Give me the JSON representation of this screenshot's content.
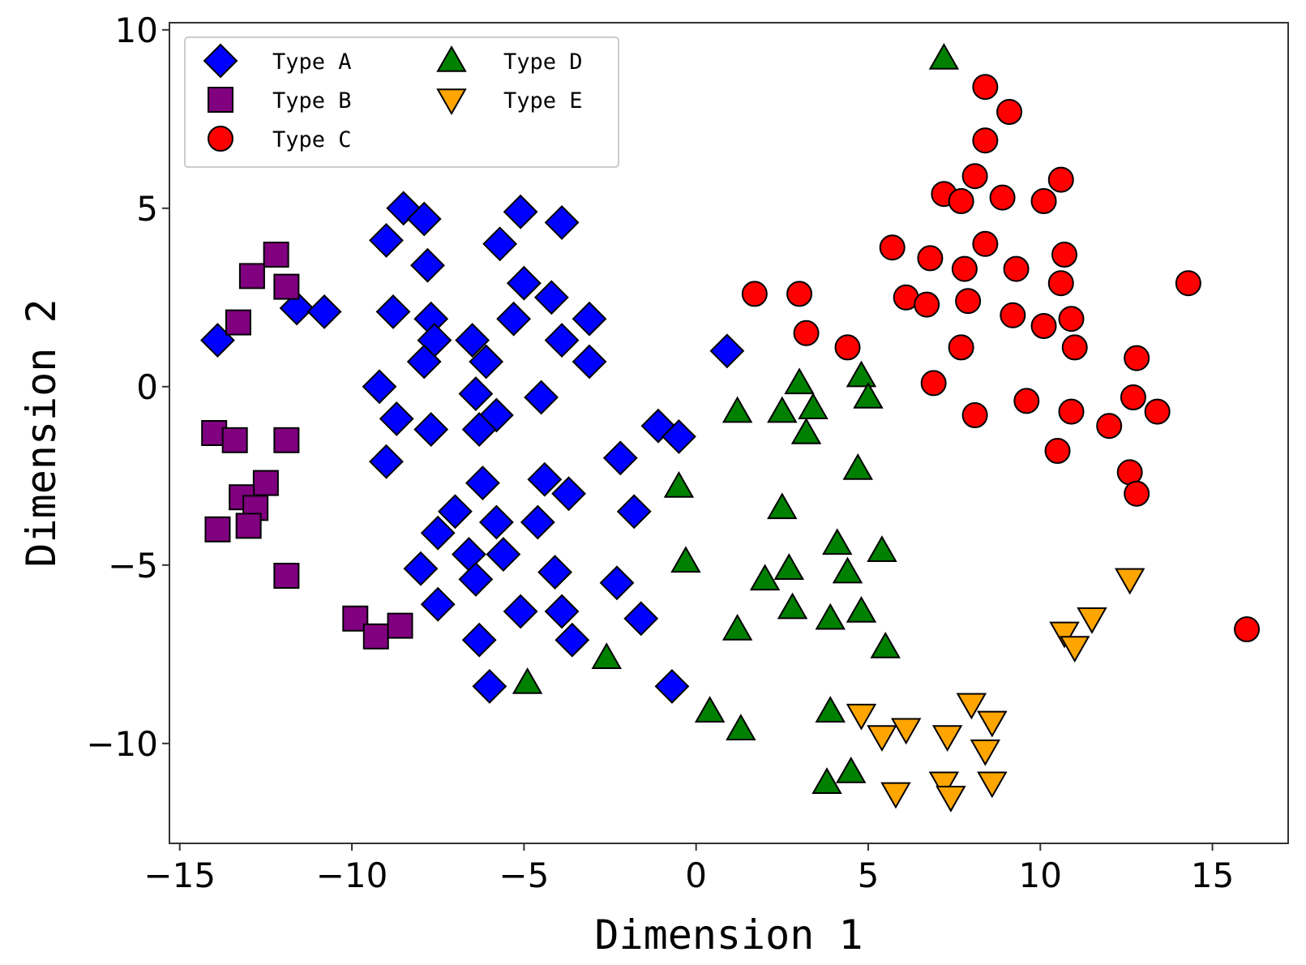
{
  "chart_data": {
    "type": "scatter",
    "title": "",
    "xlabel": "Dimension 1",
    "ylabel": "Dimension 2",
    "xlim": [
      -15.3,
      17.2
    ],
    "ylim": [
      -12.8,
      10.2
    ],
    "xticks": [
      -15,
      -10,
      -5,
      0,
      5,
      10,
      15
    ],
    "yticks": [
      -10,
      -5,
      0,
      5,
      10
    ],
    "xtick_labels": [
      "−15",
      "−10",
      "−5",
      "0",
      "5",
      "10",
      "15"
    ],
    "ytick_labels": [
      "−10",
      "−5",
      "0",
      "5",
      "10"
    ],
    "grid": false,
    "legend_position": "top-left",
    "series": [
      {
        "name": "Type A",
        "marker": "diamond",
        "color": "#0000ff",
        "points": [
          [
            -13.9,
            1.3
          ],
          [
            -11.6,
            2.2
          ],
          [
            -10.8,
            2.1
          ],
          [
            -8.5,
            5.0
          ],
          [
            -7.9,
            4.7
          ],
          [
            -9.0,
            4.1
          ],
          [
            -7.8,
            3.4
          ],
          [
            -8.8,
            2.1
          ],
          [
            -7.7,
            1.9
          ],
          [
            -7.6,
            1.3
          ],
          [
            -7.9,
            0.7
          ],
          [
            -9.2,
            0.0
          ],
          [
            -8.7,
            -0.9
          ],
          [
            -7.7,
            -1.2
          ],
          [
            -9.0,
            -2.1
          ],
          [
            -5.1,
            4.9
          ],
          [
            -3.9,
            4.6
          ],
          [
            -5.7,
            4.0
          ],
          [
            -5.0,
            2.9
          ],
          [
            -4.2,
            2.5
          ],
          [
            -5.3,
            1.9
          ],
          [
            -3.1,
            1.9
          ],
          [
            -3.9,
            1.3
          ],
          [
            -6.5,
            1.3
          ],
          [
            -6.1,
            0.7
          ],
          [
            -3.1,
            0.7
          ],
          [
            -6.4,
            -0.2
          ],
          [
            -4.5,
            -0.3
          ],
          [
            -5.8,
            -0.8
          ],
          [
            -6.3,
            -1.2
          ],
          [
            -1.1,
            -1.1
          ],
          [
            -0.5,
            -1.4
          ],
          [
            -2.2,
            -2.0
          ],
          [
            -6.2,
            -2.7
          ],
          [
            -4.4,
            -2.6
          ],
          [
            -3.7,
            -3.0
          ],
          [
            -7.0,
            -3.5
          ],
          [
            -7.5,
            -4.1
          ],
          [
            -5.8,
            -3.8
          ],
          [
            -4.6,
            -3.8
          ],
          [
            -1.8,
            -3.5
          ],
          [
            -6.6,
            -4.7
          ],
          [
            -5.6,
            -4.7
          ],
          [
            -8.0,
            -5.1
          ],
          [
            -6.4,
            -5.4
          ],
          [
            -4.1,
            -5.2
          ],
          [
            -2.3,
            -5.5
          ],
          [
            -7.5,
            -6.1
          ],
          [
            -5.1,
            -6.3
          ],
          [
            -3.9,
            -6.3
          ],
          [
            -1.6,
            -6.5
          ],
          [
            -6.3,
            -7.1
          ],
          [
            -3.6,
            -7.1
          ],
          [
            -6.0,
            -8.4
          ],
          [
            -0.7,
            -8.4
          ],
          [
            0.9,
            1.0
          ]
        ]
      },
      {
        "name": "Type B",
        "marker": "square",
        "color": "#800080",
        "points": [
          [
            -12.2,
            3.7
          ],
          [
            -12.9,
            3.1
          ],
          [
            -11.9,
            2.8
          ],
          [
            -13.3,
            1.8
          ],
          [
            -14.0,
            -1.3
          ],
          [
            -13.4,
            -1.5
          ],
          [
            -11.9,
            -1.5
          ],
          [
            -12.5,
            -2.7
          ],
          [
            -13.2,
            -3.1
          ],
          [
            -12.8,
            -3.4
          ],
          [
            -13.9,
            -4.0
          ],
          [
            -13.0,
            -3.9
          ],
          [
            -11.9,
            -5.3
          ],
          [
            -9.9,
            -6.5
          ],
          [
            -9.3,
            -7.0
          ],
          [
            -8.6,
            -6.7
          ]
        ]
      },
      {
        "name": "Type C",
        "marker": "circle",
        "color": "#ff0000",
        "points": [
          [
            8.4,
            8.4
          ],
          [
            9.1,
            7.7
          ],
          [
            8.4,
            6.9
          ],
          [
            8.1,
            5.9
          ],
          [
            7.2,
            5.4
          ],
          [
            7.7,
            5.2
          ],
          [
            8.9,
            5.3
          ],
          [
            10.1,
            5.2
          ],
          [
            10.6,
            5.8
          ],
          [
            5.7,
            3.9
          ],
          [
            6.8,
            3.6
          ],
          [
            7.8,
            3.3
          ],
          [
            8.4,
            4.0
          ],
          [
            9.3,
            3.3
          ],
          [
            10.7,
            3.7
          ],
          [
            10.6,
            2.9
          ],
          [
            14.3,
            2.9
          ],
          [
            1.7,
            2.6
          ],
          [
            3.0,
            2.6
          ],
          [
            6.1,
            2.5
          ],
          [
            6.7,
            2.3
          ],
          [
            7.9,
            2.4
          ],
          [
            9.2,
            2.0
          ],
          [
            10.1,
            1.7
          ],
          [
            10.9,
            1.9
          ],
          [
            3.2,
            1.5
          ],
          [
            4.4,
            1.1
          ],
          [
            7.7,
            1.1
          ],
          [
            11.0,
            1.1
          ],
          [
            6.9,
            0.1
          ],
          [
            12.8,
            0.8
          ],
          [
            12.7,
            -0.3
          ],
          [
            9.6,
            -0.4
          ],
          [
            13.4,
            -0.7
          ],
          [
            10.9,
            -0.7
          ],
          [
            8.1,
            -0.8
          ],
          [
            12.0,
            -1.1
          ],
          [
            10.5,
            -1.8
          ],
          [
            12.6,
            -2.4
          ],
          [
            12.8,
            -3.0
          ],
          [
            16.0,
            -6.8
          ]
        ]
      },
      {
        "name": "Type D",
        "marker": "triangle-up",
        "color": "#008000",
        "points": [
          [
            7.2,
            9.2
          ],
          [
            3.0,
            0.1
          ],
          [
            4.8,
            0.3
          ],
          [
            5.0,
            -0.3
          ],
          [
            1.2,
            -0.7
          ],
          [
            2.5,
            -0.7
          ],
          [
            3.4,
            -0.6
          ],
          [
            3.2,
            -1.3
          ],
          [
            4.7,
            -2.3
          ],
          [
            -0.5,
            -2.8
          ],
          [
            2.5,
            -3.4
          ],
          [
            4.1,
            -4.4
          ],
          [
            5.4,
            -4.6
          ],
          [
            -0.3,
            -4.9
          ],
          [
            2.7,
            -5.1
          ],
          [
            4.4,
            -5.2
          ],
          [
            2.0,
            -5.4
          ],
          [
            2.8,
            -6.2
          ],
          [
            3.9,
            -6.5
          ],
          [
            4.8,
            -6.3
          ],
          [
            1.2,
            -6.8
          ],
          [
            5.5,
            -7.3
          ],
          [
            -2.6,
            -7.6
          ],
          [
            -4.9,
            -8.3
          ],
          [
            0.4,
            -9.1
          ],
          [
            1.3,
            -9.6
          ],
          [
            3.9,
            -9.1
          ],
          [
            4.5,
            -10.8
          ],
          [
            3.8,
            -11.1
          ]
        ]
      },
      {
        "name": "Type E",
        "marker": "triangle-down",
        "color": "#ffa500",
        "points": [
          [
            12.6,
            -5.4
          ],
          [
            11.5,
            -6.5
          ],
          [
            10.7,
            -6.9
          ],
          [
            11.0,
            -7.3
          ],
          [
            4.8,
            -9.2
          ],
          [
            5.4,
            -9.8
          ],
          [
            6.1,
            -9.6
          ],
          [
            7.3,
            -9.8
          ],
          [
            8.0,
            -8.9
          ],
          [
            8.6,
            -9.4
          ],
          [
            8.4,
            -10.2
          ],
          [
            7.2,
            -11.1
          ],
          [
            7.4,
            -11.5
          ],
          [
            8.6,
            -11.1
          ],
          [
            5.8,
            -11.4
          ]
        ]
      }
    ]
  }
}
